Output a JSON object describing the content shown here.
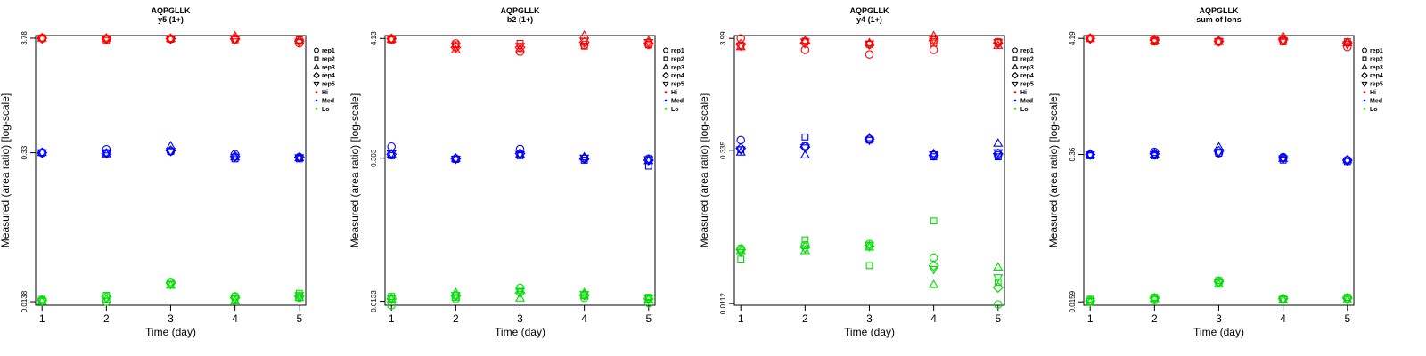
{
  "chart_data": [
    {
      "type": "scatter",
      "title": "AQPGLLK",
      "subtitle": "y5 (1+)",
      "xlabel": "Time (day)",
      "ylabel": "Measured (area ratio) [log-scale]",
      "x": [
        1,
        2,
        3,
        4,
        5
      ],
      "xlim": [
        0.9,
        5.1
      ],
      "yscale": "log",
      "ylim": [
        0.0128,
        4.0
      ],
      "yticks": [
        0.0138,
        0.33,
        3.78
      ],
      "ytick_labels": [
        "0.0138",
        "0.33",
        "3.78"
      ],
      "legend": {
        "position": "top-right-outside",
        "entries": [
          "rep1",
          "rep2",
          "rep3",
          "rep4",
          "rep5",
          "Hi",
          "Med",
          "Lo"
        ]
      },
      "series": [
        {
          "name": "Hi",
          "color": "#ff0000",
          "points": {
            "rep1": [
              3.78,
              3.75,
              3.72,
              3.7,
              3.4
            ],
            "rep2": [
              3.8,
              3.6,
              3.7,
              3.65,
              3.65
            ],
            "rep3": [
              3.78,
              3.78,
              3.74,
              3.95,
              3.6
            ],
            "rep4": [
              3.78,
              3.72,
              3.74,
              3.72,
              3.55
            ],
            "rep5": [
              3.74,
              3.74,
              3.7,
              3.7,
              3.5
            ]
          }
        },
        {
          "name": "Med",
          "color": "#0000ff",
          "points": {
            "rep1": [
              0.33,
              0.355,
              0.34,
              0.32,
              0.3
            ],
            "rep2": [
              0.33,
              0.33,
              0.34,
              0.29,
              0.29
            ],
            "rep3": [
              0.33,
              0.32,
              0.38,
              0.3,
              0.295
            ],
            "rep4": [
              0.33,
              0.325,
              0.345,
              0.305,
              0.3
            ],
            "rep5": [
              0.332,
              0.328,
              0.342,
              0.302,
              0.298
            ]
          }
        },
        {
          "name": "Lo",
          "color": "#00dd00",
          "points": {
            "rep1": [
              0.014,
              0.0138,
              0.021,
              0.0155,
              0.015
            ],
            "rep2": [
              0.0145,
              0.0158,
              0.02,
              0.0145,
              0.0165
            ],
            "rep3": [
              0.0138,
              0.0145,
              0.0195,
              0.014,
              0.015
            ],
            "rep4": [
              0.0142,
              0.0152,
              0.0205,
              0.015,
              0.0155
            ],
            "rep5": [
              0.014,
              0.015,
              0.02,
              0.0148,
              0.0158
            ]
          }
        }
      ]
    },
    {
      "type": "scatter",
      "title": "AQPGLLK",
      "subtitle": "b2 (1+)",
      "xlabel": "Time (day)",
      "ylabel": "Measured (area ratio) [log-scale]",
      "x": [
        1,
        2,
        3,
        4,
        5
      ],
      "xlim": [
        0.9,
        5.1
      ],
      "yscale": "log",
      "ylim": [
        0.0122,
        4.4
      ],
      "yticks": [
        0.0133,
        0.303,
        4.13
      ],
      "ytick_labels": [
        "0.0133",
        "0.303",
        "4.13"
      ],
      "legend": {
        "position": "top-right-outside",
        "entries": [
          "rep1",
          "rep2",
          "rep3",
          "rep4",
          "rep5",
          "Hi",
          "Med",
          "Lo"
        ]
      },
      "series": [
        {
          "name": "Hi",
          "color": "#ff0000",
          "points": {
            "rep1": [
              4.1,
              3.7,
              3.1,
              3.6,
              3.6
            ],
            "rep2": [
              4.0,
              3.6,
              3.7,
              3.5,
              3.6
            ],
            "rep3": [
              4.05,
              3.2,
              3.3,
              4.4,
              3.9
            ],
            "rep4": [
              4.1,
              3.4,
              3.4,
              3.8,
              3.7
            ],
            "rep5": [
              4.08,
              3.5,
              3.5,
              3.9,
              3.8
            ]
          }
        },
        {
          "name": "Med",
          "color": "#0000ff",
          "points": {
            "rep1": [
              0.39,
              0.3,
              0.37,
              0.3,
              0.3
            ],
            "rep2": [
              0.32,
              0.295,
              0.32,
              0.29,
              0.255
            ],
            "rep3": [
              0.33,
              0.3,
              0.33,
              0.31,
              0.285
            ],
            "rep4": [
              0.33,
              0.3,
              0.335,
              0.3,
              0.29
            ],
            "rep5": [
              0.335,
              0.298,
              0.33,
              0.305,
              0.295
            ]
          }
        },
        {
          "name": "Lo",
          "color": "#00dd00",
          "points": {
            "rep1": [
              0.0122,
              0.014,
              0.0178,
              0.0143,
              0.0128
            ],
            "rep2": [
              0.0148,
              0.0145,
              0.017,
              0.015,
              0.0145
            ],
            "rep3": [
              0.0138,
              0.016,
              0.0142,
              0.016,
              0.0138
            ],
            "rep4": [
              0.014,
              0.015,
              0.016,
              0.0152,
              0.014
            ],
            "rep5": [
              0.0142,
              0.0152,
              0.0165,
              0.0155,
              0.0142
            ]
          }
        }
      ]
    },
    {
      "type": "scatter",
      "title": "AQPGLLK",
      "subtitle": "y4 (1+)",
      "xlabel": "Time (day)",
      "ylabel": "Measured (area ratio) [log-scale]",
      "x": [
        1,
        2,
        3,
        4,
        5
      ],
      "xlim": [
        0.9,
        5.1
      ],
      "yscale": "log",
      "ylim": [
        0.0108,
        4.25
      ],
      "yticks": [
        0.0112,
        0.335,
        3.99
      ],
      "ytick_labels": [
        "0.0112",
        "0.335",
        "3.99"
      ],
      "legend": {
        "position": "top-right-outside",
        "entries": [
          "rep1",
          "rep2",
          "rep3",
          "rep4",
          "rep5",
          "Hi",
          "Med",
          "Lo"
        ]
      },
      "series": [
        {
          "name": "Hi",
          "color": "#ff0000",
          "points": {
            "rep1": [
              3.99,
              3.1,
              2.8,
              3.1,
              3.6
            ],
            "rep2": [
              3.4,
              3.75,
              3.5,
              3.6,
              3.7
            ],
            "rep3": [
              3.3,
              3.8,
              3.6,
              4.2,
              3.4
            ],
            "rep4": [
              3.5,
              3.6,
              3.5,
              3.8,
              3.6
            ],
            "rep5": [
              3.4,
              3.7,
              3.55,
              3.9,
              3.65
            ]
          }
        },
        {
          "name": "Med",
          "color": "#0000ff",
          "points": {
            "rep1": [
              0.42,
              0.37,
              0.43,
              0.3,
              0.3
            ],
            "rep2": [
              0.34,
              0.45,
              0.42,
              0.29,
              0.29
            ],
            "rep3": [
              0.32,
              0.3,
              0.44,
              0.31,
              0.39
            ],
            "rep4": [
              0.35,
              0.36,
              0.43,
              0.3,
              0.31
            ],
            "rep5": [
              0.34,
              0.355,
              0.42,
              0.305,
              0.32
            ]
          }
        },
        {
          "name": "Lo",
          "color": "#00dd00",
          "points": {
            "rep1": [
              0.038,
              0.041,
              0.042,
              0.031,
              0.011
            ],
            "rep2": [
              0.03,
              0.046,
              0.026,
              0.07,
              0.018
            ],
            "rep3": [
              0.036,
              0.036,
              0.039,
              0.017,
              0.025
            ],
            "rep4": [
              0.037,
              0.039,
              0.04,
              0.026,
              0.016
            ],
            "rep5": [
              0.035,
              0.038,
              0.041,
              0.024,
              0.02
            ]
          }
        }
      ]
    },
    {
      "type": "scatter",
      "title": "AQPGLLK",
      "subtitle": "sum of Ions",
      "xlabel": "Time (day)",
      "ylabel": "Measured (area ratio) [log-scale]",
      "x": [
        1,
        2,
        3,
        4,
        5
      ],
      "xlim": [
        0.9,
        5.1
      ],
      "yscale": "log",
      "ylim": [
        0.0148,
        4.45
      ],
      "yticks": [
        0.0159,
        0.36,
        4.19
      ],
      "ytick_labels": [
        "0.0159",
        "0.36",
        "4.19"
      ],
      "legend": {
        "position": "top-right-outside",
        "entries": [
          "rep1",
          "rep2",
          "rep3",
          "rep4",
          "rep5",
          "Hi",
          "Med",
          "Lo"
        ]
      },
      "series": [
        {
          "name": "Hi",
          "color": "#ff0000",
          "points": {
            "rep1": [
              4.19,
              4.15,
              3.9,
              4.0,
              3.5
            ],
            "rep2": [
              4.2,
              3.9,
              3.95,
              3.9,
              3.9
            ],
            "rep3": [
              4.15,
              4.0,
              3.9,
              4.35,
              3.8
            ],
            "rep4": [
              4.18,
              4.05,
              3.95,
              4.1,
              3.8
            ],
            "rep5": [
              4.16,
              4.0,
              3.92,
              4.0,
              3.7
            ]
          }
        },
        {
          "name": "Med",
          "color": "#0000ff",
          "points": {
            "rep1": [
              0.36,
              0.38,
              0.37,
              0.34,
              0.32
            ],
            "rep2": [
              0.35,
              0.35,
              0.37,
              0.32,
              0.31
            ],
            "rep3": [
              0.36,
              0.36,
              0.42,
              0.33,
              0.32
            ],
            "rep4": [
              0.36,
              0.365,
              0.385,
              0.335,
              0.318
            ],
            "rep5": [
              0.358,
              0.36,
              0.38,
              0.33,
              0.315
            ]
          }
        },
        {
          "name": "Lo",
          "color": "#00dd00",
          "points": {
            "rep1": [
              0.016,
              0.0165,
              0.024,
              0.017,
              0.017
            ],
            "rep2": [
              0.0168,
              0.0175,
              0.025,
              0.0168,
              0.0175
            ],
            "rep3": [
              0.0158,
              0.017,
              0.023,
              0.0165,
              0.0165
            ],
            "rep4": [
              0.0163,
              0.0172,
              0.0245,
              0.017,
              0.0172
            ],
            "rep5": [
              0.016,
              0.0168,
              0.024,
              0.0167,
              0.0168
            ]
          }
        }
      ]
    }
  ]
}
